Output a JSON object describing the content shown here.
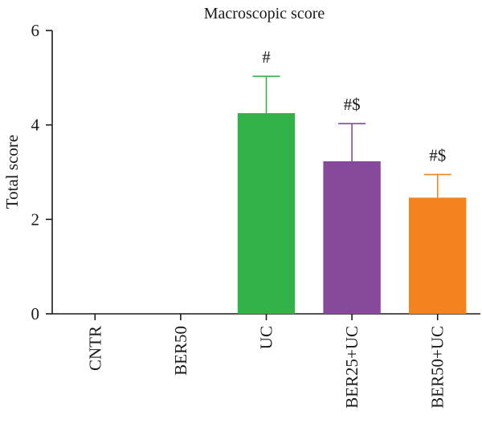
{
  "chart_data": {
    "type": "bar",
    "title": "Macroscopic score",
    "xlabel": "",
    "ylabel": "Total score",
    "ylim": [
      0,
      6
    ],
    "yticks": [
      0,
      2,
      4,
      6
    ],
    "categories": [
      "CNTR",
      "BER50",
      "UC",
      "BER25+UC",
      "BER50+UC"
    ],
    "values": [
      0,
      0,
      4.25,
      3.23,
      2.46
    ],
    "errors": [
      0,
      0,
      0.78,
      0.8,
      0.49
    ],
    "annotations": [
      "",
      "",
      "#",
      "#$",
      "#$"
    ],
    "colors": [
      "#34b24a",
      "#34b24a",
      "#34b24a",
      "#874a9b",
      "#f3821f"
    ],
    "grid": false,
    "legend": "none"
  }
}
